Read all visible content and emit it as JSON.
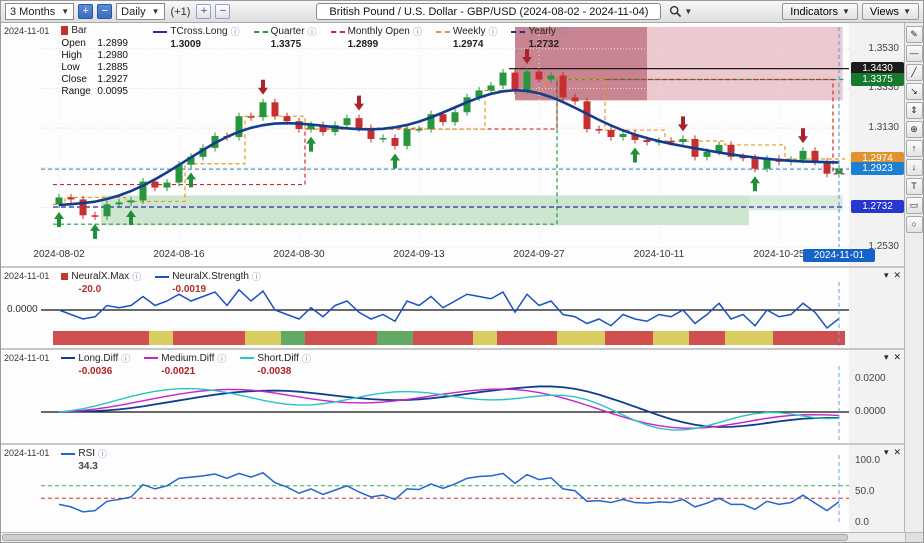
{
  "toolbar": {
    "range_select": "3 Months",
    "interval_select": "Daily",
    "offset_label": "(+1)",
    "zoom_in": "+",
    "zoom_out": "−",
    "bar_plus": "+",
    "bar_minus": "−",
    "title": "British Pound / U.S. Dollar - GBP/USD (2024-08-02 - 2024-11-04)",
    "indicators_label": "Indicators",
    "views_label": "Views"
  },
  "main_chart": {
    "date_label": "2024-11-01",
    "bar_legend": {
      "label": "Bar",
      "rows": [
        {
          "k": "Open",
          "v": "1.2899"
        },
        {
          "k": "High",
          "v": "1.2980"
        },
        {
          "k": "Low",
          "v": "1.2885"
        },
        {
          "k": "Close",
          "v": "1.2927"
        },
        {
          "k": "Range",
          "v": "0.0095"
        }
      ]
    },
    "overlay_legend": [
      {
        "name": "TCross.Long",
        "value": "1.3009",
        "color": "#123d8f",
        "icon": "line",
        "dash": false,
        "vcolor": "#222222"
      },
      {
        "name": "Quarter",
        "value": "1.3375",
        "color": "#18a13f",
        "icon": "line",
        "dash": true,
        "vcolor": "#222222"
      },
      {
        "name": "Monthly Open",
        "value": "1.2899",
        "color": "#cf2b2b",
        "icon": "line",
        "dash": true,
        "vcolor": "#222222"
      },
      {
        "name": "Weekly",
        "value": "1.2974",
        "color": "#e59a22",
        "icon": "line",
        "dash": true,
        "vcolor": "#222222"
      },
      {
        "name": "Yearly",
        "value": "1.2732",
        "color": "#2a2ca0",
        "icon": "line",
        "dash": true,
        "vcolor": "#222222"
      }
    ],
    "y_gridlines": [
      {
        "label": "1.3530",
        "price": 1.353
      },
      {
        "label": "1.3330",
        "price": 1.333
      },
      {
        "label": "1.3130",
        "price": 1.313
      },
      {
        "label": "1.2930",
        "price": 1.293
      },
      {
        "label": "1.2730",
        "price": 1.273
      },
      {
        "label": "1.2530",
        "price": 1.253
      }
    ],
    "y_badges": [
      {
        "label": "1.3430",
        "price": 1.343,
        "bg": "#1c1c1c"
      },
      {
        "label": "1.3375",
        "price": 1.3375,
        "bg": "#157a2e"
      },
      {
        "label": "1.2974",
        "price": 1.2974,
        "bg": "#e0922f"
      },
      {
        "label": "1.2923",
        "price": 1.2923,
        "bg": "#1b7fd4"
      },
      {
        "label": "1.2732",
        "price": 1.2732,
        "bg": "#2637cf"
      }
    ],
    "x_ticks": [
      {
        "label": "2024-08-02",
        "i": 0
      },
      {
        "label": "2024-08-16",
        "i": 10
      },
      {
        "label": "2024-08-30",
        "i": 20
      },
      {
        "label": "2024-09-13",
        "i": 30
      },
      {
        "label": "2024-09-27",
        "i": 40
      },
      {
        "label": "2024-10-11",
        "i": 50
      },
      {
        "label": "2024-10-25",
        "i": 60
      }
    ],
    "x_current": {
      "label": "2024-11-01",
      "i": 65
    }
  },
  "chart_data": [
    {
      "type": "candlestick",
      "title": "GBP/USD Daily",
      "ylim": [
        1.253,
        1.364
      ],
      "dates": [
        "2024-08-02",
        "2024-08-05",
        "2024-08-06",
        "2024-08-07",
        "2024-08-08",
        "2024-08-09",
        "2024-08-12",
        "2024-08-13",
        "2024-08-14",
        "2024-08-15",
        "2024-08-16",
        "2024-08-19",
        "2024-08-20",
        "2024-08-21",
        "2024-08-22",
        "2024-08-23",
        "2024-08-26",
        "2024-08-27",
        "2024-08-28",
        "2024-08-29",
        "2024-08-30",
        "2024-09-02",
        "2024-09-03",
        "2024-09-04",
        "2024-09-05",
        "2024-09-06",
        "2024-09-09",
        "2024-09-10",
        "2024-09-11",
        "2024-09-12",
        "2024-09-13",
        "2024-09-16",
        "2024-09-17",
        "2024-09-18",
        "2024-09-19",
        "2024-09-20",
        "2024-09-23",
        "2024-09-24",
        "2024-09-25",
        "2024-09-26",
        "2024-09-27",
        "2024-09-30",
        "2024-10-01",
        "2024-10-02",
        "2024-10-03",
        "2024-10-04",
        "2024-10-07",
        "2024-10-08",
        "2024-10-09",
        "2024-10-10",
        "2024-10-11",
        "2024-10-14",
        "2024-10-15",
        "2024-10-16",
        "2024-10-17",
        "2024-10-18",
        "2024-10-21",
        "2024-10-22",
        "2024-10-23",
        "2024-10-24",
        "2024-10-25",
        "2024-10-28",
        "2024-10-29",
        "2024-10-30",
        "2024-10-31",
        "2024-11-01"
      ],
      "closes": [
        1.278,
        1.277,
        1.269,
        1.2685,
        1.2745,
        1.2755,
        1.2765,
        1.286,
        1.283,
        1.2855,
        1.2945,
        1.2985,
        1.303,
        1.309,
        1.3085,
        1.319,
        1.3185,
        1.326,
        1.319,
        1.3165,
        1.3125,
        1.3145,
        1.311,
        1.3145,
        1.318,
        1.313,
        1.3075,
        1.308,
        1.304,
        1.3125,
        1.3125,
        1.32,
        1.316,
        1.321,
        1.3285,
        1.332,
        1.3345,
        1.341,
        1.332,
        1.3415,
        1.3375,
        1.3395,
        1.3285,
        1.3265,
        1.3125,
        1.312,
        1.3085,
        1.31,
        1.307,
        1.306,
        1.3065,
        1.306,
        1.3075,
        1.2985,
        1.301,
        1.3045,
        1.2985,
        1.298,
        1.2925,
        1.2975,
        1.296,
        1.297,
        1.3015,
        1.296,
        1.29,
        1.2927
      ],
      "first_open": 1.2745,
      "wick": 0.0018,
      "up_color": "#27963c",
      "down_color": "#c62f2f",
      "tcross_color": "#123d8f",
      "overlays": {
        "quarter": {
          "color": "#18a13f",
          "segments": [
            [
              0,
              42,
              1.2645
            ],
            [
              42,
              66,
              1.3375
            ]
          ]
        },
        "monthly": {
          "color": "#cf2b2b",
          "segments": [
            [
              0,
              21,
              1.2845
            ],
            [
              21,
              42,
              1.3125
            ],
            [
              42,
              65,
              1.3375
            ],
            [
              65,
              66,
              1.2899
            ]
          ]
        },
        "weekly": {
          "color": "#e59a22",
          "segments": [
            [
              0,
              1,
              1.2745
            ],
            [
              1,
              6,
              1.278
            ],
            [
              6,
              11,
              1.276
            ],
            [
              11,
              16,
              1.295
            ],
            [
              16,
              21,
              1.319
            ],
            [
              21,
              26,
              1.3125
            ],
            [
              26,
              31,
              1.313
            ],
            [
              31,
              36,
              1.3125
            ],
            [
              36,
              41,
              1.332
            ],
            [
              41,
              46,
              1.3375
            ],
            [
              46,
              51,
              1.312
            ],
            [
              51,
              56,
              1.3065
            ],
            [
              56,
              61,
              1.3045
            ],
            [
              61,
              66,
              1.2974
            ]
          ]
        },
        "yearly": {
          "color": "#2a2ca0",
          "segments": [
            [
              0,
              66,
              1.2732
            ]
          ]
        },
        "level_black": {
          "color": "#1c1c1c",
          "from": 38,
          "price": 1.343
        },
        "current_price": {
          "color": "#1b7fd4",
          "price": 1.2923
        }
      },
      "zones": [
        {
          "from": 38.5,
          "to": 65.8,
          "top": 1.364,
          "bottom": 1.327,
          "color": "rgba(214,138,148,0.45)"
        },
        {
          "from": 38.5,
          "to": 49.5,
          "top": 1.364,
          "bottom": 1.327,
          "color": "rgba(158,52,70,0.45)"
        },
        {
          "from": 4,
          "to": 58,
          "top": 1.279,
          "bottom": 1.264,
          "color": "rgba(136,196,138,0.40)"
        },
        {
          "from": 58,
          "to": 65.8,
          "top": 1.279,
          "bottom": 1.2715,
          "color": "rgba(136,196,138,0.30)"
        }
      ],
      "arrows_up": [
        0,
        3,
        6,
        11,
        21,
        28,
        48,
        58
      ],
      "arrows_down": [
        17,
        25,
        39,
        52,
        62
      ]
    },
    {
      "type": "line",
      "name": "NeuralX.Strength",
      "max_value": -20.0,
      "line_color": "#1b52c0",
      "values": [
        0.0,
        -0.001,
        -0.002,
        -0.0015,
        0.001,
        0.0005,
        0.001,
        0.003,
        0.001,
        0.002,
        0.0035,
        0.002,
        0.003,
        0.004,
        0.001,
        0.0045,
        0.002,
        0.0042,
        0.0,
        -0.001,
        -0.002,
        0.0005,
        -0.0015,
        0.001,
        0.002,
        -0.0005,
        -0.002,
        -0.001,
        -0.0025,
        0.002,
        0.001,
        0.003,
        0.0005,
        0.002,
        0.0035,
        0.003,
        0.0025,
        0.004,
        -0.0005,
        0.0035,
        0.001,
        0.002,
        -0.001,
        -0.0015,
        -0.003,
        -0.002,
        -0.0035,
        -0.001,
        -0.002,
        -0.0025,
        -0.001,
        -0.0015,
        0.0,
        -0.003,
        -0.001,
        0.0015,
        -0.002,
        -0.001,
        -0.0035,
        0.0,
        -0.0015,
        -0.001,
        0.0015,
        -0.0005,
        -0.004,
        -0.0019
      ],
      "heat": "rrrrrrrryyrrrrrryyyggrrrrrrgggrrrrryyrrrrryyyyrrrryyyrrryyyyrrrrrr",
      "heat_colors": {
        "r": "#d05050",
        "y": "#d8cd5e",
        "g": "#63a963"
      }
    },
    {
      "type": "line",
      "ylim": [
        -0.012,
        0.022
      ],
      "series": [
        {
          "name": "Long.Diff",
          "color": "#123d8f",
          "values": [
            0.0,
            0.0002,
            0.0004,
            0.0006,
            0.001,
            0.0016,
            0.0024,
            0.0034,
            0.0046,
            0.0058,
            0.007,
            0.0082,
            0.0094,
            0.0105,
            0.0114,
            0.0121,
            0.0126,
            0.0129,
            0.013,
            0.0128,
            0.0123,
            0.0116,
            0.0108,
            0.0099,
            0.0091,
            0.0084,
            0.0078,
            0.0074,
            0.0072,
            0.0073,
            0.0077,
            0.0083,
            0.0091,
            0.01,
            0.011,
            0.012,
            0.0129,
            0.0137,
            0.0144,
            0.015,
            0.0155,
            0.0155,
            0.015,
            0.014,
            0.0125,
            0.0105,
            0.0082,
            0.0058,
            0.0032,
            0.0006,
            -0.002,
            -0.0043,
            -0.0062,
            -0.0077,
            -0.0087,
            -0.0091,
            -0.009,
            -0.0085,
            -0.0077,
            -0.0067,
            -0.0057,
            -0.0048,
            -0.0041,
            -0.0037,
            -0.0036,
            -0.0036
          ]
        },
        {
          "name": "Medium.Diff",
          "color": "#cc22cc",
          "values": [
            0.0,
            0.0004,
            0.001,
            0.0018,
            0.0028,
            0.004,
            0.0054,
            0.0068,
            0.0082,
            0.0096,
            0.0108,
            0.0119,
            0.0128,
            0.0134,
            0.0137,
            0.0136,
            0.0132,
            0.0125,
            0.0115,
            0.0103,
            0.0091,
            0.008,
            0.007,
            0.0062,
            0.0057,
            0.0055,
            0.0056,
            0.006,
            0.0067,
            0.0076,
            0.0086,
            0.0097,
            0.0108,
            0.0118,
            0.0127,
            0.0134,
            0.0138,
            0.0139,
            0.0136,
            0.0129,
            0.0118,
            0.0103,
            0.0085,
            0.0064,
            0.0041,
            0.0017,
            -0.0007,
            -0.003,
            -0.0051,
            -0.0069,
            -0.0083,
            -0.0093,
            -0.0098,
            -0.0098,
            -0.0094,
            -0.0086,
            -0.0075,
            -0.0063,
            -0.005,
            -0.0038,
            -0.0028,
            -0.0021,
            -0.0017,
            -0.0016,
            -0.0018,
            -0.0021
          ]
        },
        {
          "name": "Short.Diff",
          "color": "#2bc4c4",
          "values": [
            0.0,
            0.0008,
            0.002,
            0.0036,
            0.0055,
            0.0075,
            0.0094,
            0.0111,
            0.0125,
            0.0135,
            0.0141,
            0.0142,
            0.0138,
            0.013,
            0.0118,
            0.0103,
            0.0087,
            0.0071,
            0.0057,
            0.0047,
            0.0042,
            0.0043,
            0.005,
            0.0061,
            0.0075,
            0.009,
            0.0104,
            0.0115,
            0.0122,
            0.0124,
            0.0121,
            0.0114,
            0.0104,
            0.0093,
            0.0083,
            0.0076,
            0.0073,
            0.0075,
            0.0081,
            0.0089,
            0.0097,
            0.0102,
            0.0101,
            0.0092,
            0.0074,
            0.0048,
            0.0016,
            -0.0018,
            -0.0051,
            -0.0079,
            -0.0099,
            -0.0109,
            -0.0109,
            -0.01,
            -0.0084,
            -0.0064,
            -0.0043,
            -0.0024,
            -0.001,
            -0.0003,
            -0.0004,
            -0.0012,
            -0.0024,
            -0.0035,
            -0.004,
            -0.0038
          ]
        }
      ]
    },
    {
      "type": "line",
      "name": "RSI",
      "ylim": [
        0,
        100
      ],
      "line_color": "#2266cc",
      "thresholds": {
        "upper": 60,
        "lower": 40
      },
      "upper_color": "#2fae4f",
      "lower_color": "#cc3333",
      "values": [
        30,
        26,
        18,
        20,
        35,
        38,
        42,
        62,
        55,
        60,
        72,
        74,
        76,
        79,
        72,
        80,
        74,
        81,
        65,
        58,
        48,
        55,
        46,
        53,
        60,
        50,
        42,
        45,
        38,
        55,
        54,
        63,
        56,
        63,
        72,
        75,
        76,
        80,
        64,
        78,
        70,
        73,
        55,
        52,
        35,
        36,
        33,
        38,
        33,
        32,
        34,
        33,
        38,
        26,
        32,
        40,
        30,
        30,
        22,
        35,
        30,
        33,
        45,
        32,
        20,
        34.3
      ]
    }
  ],
  "panels": {
    "controls": {
      "collapse": "▾",
      "close": "✕"
    },
    "neuralx": {
      "date": "2024-11-01",
      "zero_label": "0.0000",
      "items": [
        {
          "name": "NeuralX.Max",
          "value": "-20.0",
          "icon": "square",
          "color": "#c0392b",
          "dash": false,
          "vcolor": "#b03030"
        },
        {
          "name": "NeuralX.Strength",
          "value": "-0.0019",
          "icon": "line",
          "color": "#1b52c0",
          "dash": false,
          "vcolor": "#b03030"
        }
      ]
    },
    "diff": {
      "date": "2024-11-01",
      "axis": [
        {
          "label": "0.0200",
          "v": 0.02
        },
        {
          "label": "0.0000",
          "v": 0
        }
      ],
      "items": [
        {
          "name": "Long.Diff",
          "value": "-0.0036",
          "icon": "line",
          "color": "#123d8f",
          "dash": false,
          "vcolor": "#b22222"
        },
        {
          "name": "Medium.Diff",
          "value": "-0.0021",
          "icon": "line",
          "color": "#cc22cc",
          "dash": false,
          "vcolor": "#b22222"
        },
        {
          "name": "Short.Diff",
          "value": "-0.0038",
          "icon": "line",
          "color": "#2bc4c4",
          "dash": false,
          "vcolor": "#b22222"
        }
      ]
    },
    "rsi": {
      "date": "2024-11-01",
      "axis": [
        {
          "label": "100.0",
          "v": 100
        },
        {
          "label": "50.0",
          "v": 50
        },
        {
          "label": "0.0",
          "v": 0
        }
      ],
      "items": [
        {
          "name": "RSI",
          "value": "34.3",
          "icon": "line",
          "color": "#2266cc",
          "dash": false,
          "vcolor": "#444444"
        }
      ]
    }
  },
  "right_toolbar": {
    "icons": [
      {
        "name": "draw-pencil-tool",
        "glyph": "✎"
      },
      {
        "name": "horizontal-line-tool",
        "glyph": "—"
      },
      {
        "name": "trend-line-tool",
        "glyph": "╱"
      },
      {
        "name": "arrow-tool",
        "glyph": "↘"
      },
      {
        "name": "resize-tool",
        "glyph": "⇕"
      },
      {
        "name": "crosshair-tool",
        "glyph": "⊕"
      },
      {
        "name": "arrow-up-marker-tool",
        "glyph": "↑"
      },
      {
        "name": "arrow-down-marker-tool",
        "glyph": "↓"
      },
      {
        "name": "text-tool",
        "glyph": "T"
      },
      {
        "name": "rectangle-tool",
        "glyph": "▭"
      },
      {
        "name": "ellipse-tool",
        "glyph": "○"
      }
    ]
  }
}
